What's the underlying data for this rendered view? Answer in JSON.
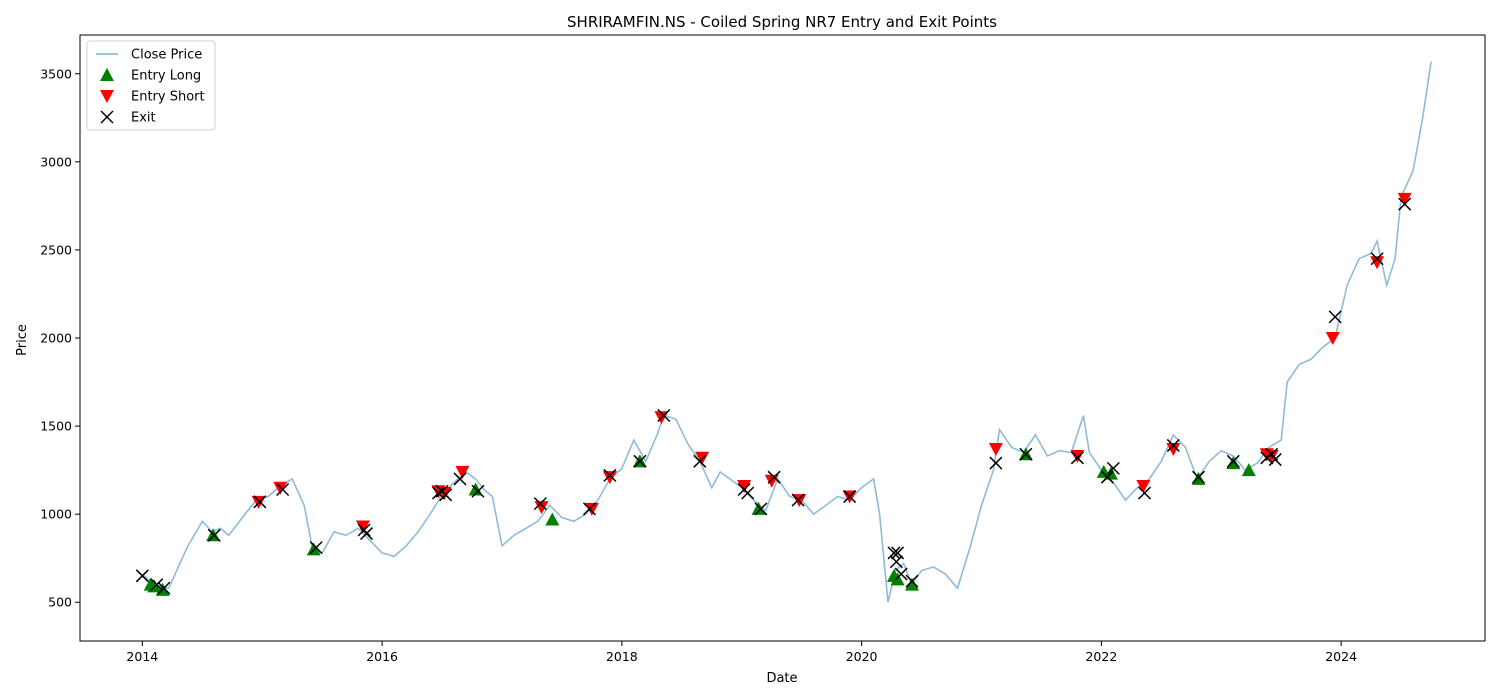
{
  "chart_data": {
    "type": "line",
    "title": "SHRIRAMFIN.NS - Coiled Spring NR7 Entry and Exit Points",
    "xlabel": "Date",
    "ylabel": "Price",
    "xlim": [
      2013.48,
      2025.2
    ],
    "ylim": [
      280,
      3720
    ],
    "x_ticks": [
      2014,
      2016,
      2018,
      2020,
      2022,
      2024
    ],
    "y_ticks": [
      500,
      1000,
      1500,
      2000,
      2500,
      3000,
      3500
    ],
    "grid": false,
    "legend_position": "top-left",
    "colors": {
      "close_price": "#8fbbd9",
      "entry_long": "#008000",
      "entry_short": "#ff0000",
      "exit": "#000000"
    },
    "series": [
      {
        "name": "Close Price",
        "kind": "line",
        "x": [
          2014.0,
          2014.08,
          2014.15,
          2014.22,
          2014.3,
          2014.38,
          2014.45,
          2014.5,
          2014.58,
          2014.65,
          2014.72,
          2014.8,
          2014.88,
          2014.95,
          2015.05,
          2015.15,
          2015.25,
          2015.35,
          2015.42,
          2015.5,
          2015.6,
          2015.7,
          2015.8,
          2015.9,
          2016.0,
          2016.1,
          2016.2,
          2016.3,
          2016.4,
          2016.5,
          2016.6,
          2016.7,
          2016.78,
          2016.85,
          2016.92,
          2017.0,
          2017.1,
          2017.2,
          2017.3,
          2017.4,
          2017.5,
          2017.6,
          2017.7,
          2017.8,
          2017.9,
          2018.0,
          2018.1,
          2018.2,
          2018.3,
          2018.35,
          2018.45,
          2018.55,
          2018.65,
          2018.75,
          2018.82,
          2018.9,
          2019.0,
          2019.1,
          2019.2,
          2019.3,
          2019.4,
          2019.5,
          2019.6,
          2019.7,
          2019.8,
          2019.9,
          2020.0,
          2020.1,
          2020.15,
          2020.22,
          2020.28,
          2020.35,
          2020.42,
          2020.5,
          2020.6,
          2020.7,
          2020.8,
          2020.9,
          2021.0,
          2021.1,
          2021.15,
          2021.25,
          2021.35,
          2021.45,
          2021.55,
          2021.65,
          2021.75,
          2021.85,
          2021.9,
          2022.0,
          2022.1,
          2022.2,
          2022.3,
          2022.4,
          2022.5,
          2022.6,
          2022.7,
          2022.8,
          2022.9,
          2023.0,
          2023.1,
          2023.2,
          2023.3,
          2023.4,
          2023.5,
          2023.55,
          2023.65,
          2023.75,
          2023.85,
          2023.95,
          2024.05,
          2024.15,
          2024.25,
          2024.3,
          2024.38,
          2024.45,
          2024.5,
          2024.6,
          2024.68,
          2024.75
        ],
        "y": [
          660,
          610,
          590,
          580,
          700,
          820,
          900,
          960,
          900,
          920,
          880,
          950,
          1020,
          1080,
          1100,
          1160,
          1200,
          1050,
          800,
          780,
          900,
          880,
          920,
          850,
          780,
          760,
          820,
          900,
          1000,
          1110,
          1180,
          1240,
          1200,
          1140,
          1100,
          820,
          880,
          920,
          960,
          1050,
          980,
          960,
          1000,
          1080,
          1200,
          1260,
          1420,
          1300,
          1460,
          1560,
          1540,
          1400,
          1300,
          1150,
          1240,
          1200,
          1150,
          1080,
          1020,
          1200,
          1100,
          1080,
          1000,
          1050,
          1100,
          1080,
          1150,
          1200,
          1000,
          500,
          680,
          720,
          600,
          680,
          700,
          660,
          580,
          800,
          1050,
          1250,
          1480,
          1380,
          1350,
          1450,
          1330,
          1360,
          1350,
          1560,
          1350,
          1250,
          1180,
          1080,
          1150,
          1200,
          1300,
          1450,
          1380,
          1200,
          1300,
          1360,
          1330,
          1250,
          1290,
          1380,
          1420,
          1750,
          1850,
          1880,
          1950,
          2000,
          2300,
          2450,
          2480,
          2550,
          2300,
          2450,
          2800,
          2950,
          3250,
          3570
        ]
      },
      {
        "name": "Entry Long",
        "kind": "marker",
        "x": [
          2014.07,
          2014.1,
          2014.17,
          2014.59,
          2015.43,
          2016.78,
          2017.42,
          2018.15,
          2019.14,
          2020.27,
          2020.3,
          2020.42,
          2021.37,
          2022.02,
          2022.08,
          2022.81,
          2023.1,
          2023.23
        ],
        "y": [
          600,
          590,
          570,
          880,
          800,
          1140,
          970,
          1300,
          1030,
          650,
          630,
          600,
          1340,
          1240,
          1230,
          1200,
          1290,
          1250
        ]
      },
      {
        "name": "Entry Short",
        "kind": "marker",
        "x": [
          2014.97,
          2015.15,
          2015.84,
          2016.47,
          2016.52,
          2016.67,
          2017.33,
          2017.75,
          2017.9,
          2018.33,
          2018.67,
          2019.02,
          2019.25,
          2019.48,
          2019.9,
          2021.12,
          2021.8,
          2022.35,
          2022.6,
          2023.38,
          2023.42,
          2023.93,
          2024.3,
          2024.53
        ],
        "y": [
          1070,
          1150,
          930,
          1130,
          1120,
          1240,
          1040,
          1030,
          1210,
          1550,
          1320,
          1160,
          1190,
          1080,
          1100,
          1370,
          1330,
          1160,
          1370,
          1340,
          1330,
          2000,
          2430,
          2790
        ]
      },
      {
        "name": "Exit",
        "kind": "marker",
        "x": [
          2014.0,
          2014.12,
          2014.18,
          2014.6,
          2014.98,
          2015.17,
          2015.45,
          2015.85,
          2015.87,
          2016.47,
          2016.5,
          2016.53,
          2016.65,
          2016.8,
          2017.32,
          2017.73,
          2017.9,
          2018.15,
          2018.35,
          2018.65,
          2019.02,
          2019.05,
          2019.16,
          2019.27,
          2019.47,
          2019.9,
          2020.27,
          2020.29,
          2020.3,
          2020.33,
          2020.42,
          2021.12,
          2021.37,
          2021.8,
          2022.05,
          2022.1,
          2022.36,
          2022.6,
          2022.81,
          2023.1,
          2023.38,
          2023.42,
          2023.45,
          2023.95,
          2024.3,
          2024.53
        ],
        "y": [
          650,
          600,
          580,
          880,
          1070,
          1140,
          810,
          910,
          890,
          1120,
          1130,
          1110,
          1200,
          1130,
          1060,
          1030,
          1220,
          1300,
          1560,
          1300,
          1140,
          1120,
          1030,
          1210,
          1080,
          1100,
          780,
          730,
          780,
          660,
          620,
          1290,
          1340,
          1320,
          1210,
          1260,
          1120,
          1390,
          1210,
          1300,
          1320,
          1340,
          1310,
          2120,
          2450,
          2760
        ]
      }
    ]
  }
}
